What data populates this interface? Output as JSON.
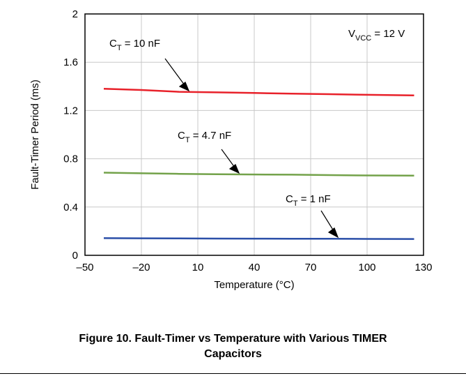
{
  "chart_data": {
    "type": "line",
    "xlabel": "Temperature (°C)",
    "ylabel": "Fault-Timer Period (ms)",
    "xlim": [
      -50,
      130
    ],
    "ylim": [
      0,
      2
    ],
    "xticks": [
      -50,
      -20,
      10,
      40,
      70,
      100,
      130
    ],
    "xtick_labels": [
      "–50",
      "–20",
      "10",
      "40",
      "70",
      "100",
      "130"
    ],
    "yticks": [
      0,
      0.4,
      0.8,
      1.2,
      1.6,
      2
    ],
    "ytick_labels": [
      "0",
      "0.4",
      "0.8",
      "1.2",
      "1.6",
      "2"
    ],
    "grid": true,
    "series": [
      {
        "color": "#e8212a",
        "x": [
          -40,
          -20,
          0,
          20,
          40,
          60,
          80,
          100,
          125
        ],
        "y": [
          1.38,
          1.37,
          1.355,
          1.35,
          1.345,
          1.34,
          1.335,
          1.33,
          1.325
        ]
      },
      {
        "color": "#73a24a",
        "x": [
          -40,
          -20,
          0,
          20,
          40,
          60,
          80,
          100,
          125
        ],
        "y": [
          0.685,
          0.68,
          0.675,
          0.672,
          0.67,
          0.668,
          0.665,
          0.662,
          0.66
        ]
      },
      {
        "color": "#2b4fa8",
        "x": [
          -40,
          -20,
          0,
          20,
          40,
          60,
          80,
          100,
          125
        ],
        "y": [
          0.142,
          0.141,
          0.14,
          0.139,
          0.138,
          0.137,
          0.137,
          0.136,
          0.135
        ]
      }
    ],
    "annotations": [
      {
        "main": "C",
        "sub": "T",
        "rest": " = 10 nF"
      },
      {
        "main": "C",
        "sub": "T",
        "rest": " = 4.7 nF"
      },
      {
        "main": "C",
        "sub": "T",
        "rest": " = 1 nF"
      },
      {
        "main": "V",
        "sub": "VCC",
        "rest": " = 12 V"
      }
    ]
  },
  "caption": {
    "line1": "Figure 10. Fault-Timer vs Temperature with Various TIMER",
    "line2": "Capacitors"
  }
}
